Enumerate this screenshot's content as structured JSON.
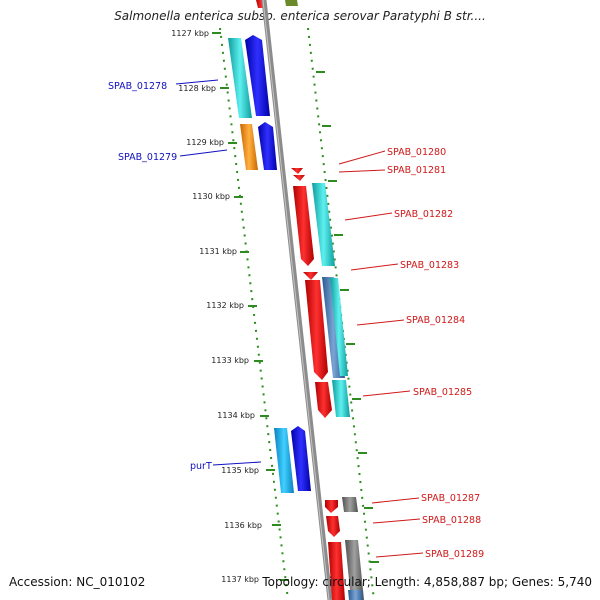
{
  "title": "Salmonella enterica subsp. enterica serovar Paratyphi B str....",
  "accession": "Accession: NC_010102",
  "topology": "Topology: circular; Length: 4,858,887 bp; Genes: 5,740",
  "scale_labels": [
    "1127 kbp",
    "1128 kbp",
    "1129 kbp",
    "1130 kbp",
    "1131 kbp",
    "1132 kbp",
    "1133 kbp",
    "1134 kbp",
    "1135 kbp",
    "1136 kbp",
    "1137 kbp"
  ],
  "gene_labels": {
    "left": [
      "SPAB_01278",
      "SPAB_01279",
      "purT"
    ],
    "right": [
      "SPAB_01280",
      "SPAB_01281",
      "SPAB_01282",
      "SPAB_01283",
      "SPAB_01284",
      "SPAB_01285",
      "SPAB_01287",
      "SPAB_01288",
      "SPAB_01289"
    ]
  },
  "colors": {
    "backbone": "#8c8c8c",
    "dotted_track": "#2e8b20",
    "left_label": "#1010c0",
    "right_label": "#d01818",
    "cyan": "#22c8c8",
    "blue": "#1010e0",
    "orange": "#f09018",
    "red": "#ee1010",
    "sky": "#18b4ee",
    "gray": "#808080",
    "steel": "#4a78b0"
  }
}
